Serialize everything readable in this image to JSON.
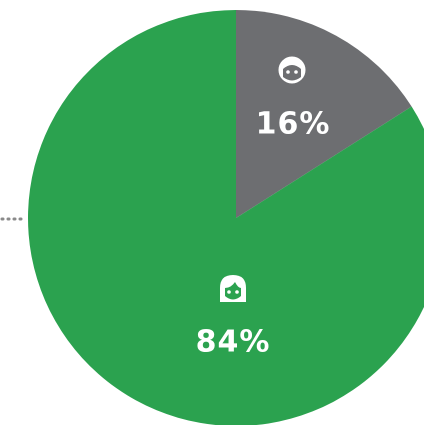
{
  "chart_data": {
    "type": "pie",
    "values": [
      16,
      84
    ],
    "value_labels": [
      "16%",
      "84%"
    ],
    "colors": [
      "#6d6e71",
      "#2ba24f"
    ]
  }
}
